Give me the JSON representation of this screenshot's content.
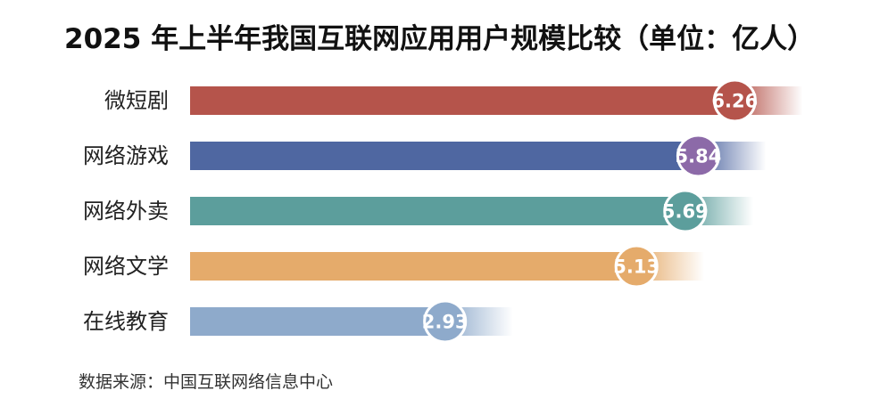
{
  "title": "2025 年上半年我国互联网应用用户规模比较（单位：亿人）",
  "source": "数据来源：中国互联网络信息中心",
  "chart_data": {
    "type": "bar",
    "orientation": "horizontal",
    "title": "2025 年上半年我国互联网应用用户规模比较（单位：亿人）",
    "unit": "亿人",
    "categories": [
      "微短剧",
      "网络游戏",
      "网络外卖",
      "网络文学",
      "在线教育"
    ],
    "values": [
      6.26,
      5.84,
      5.69,
      5.13,
      2.93
    ],
    "data_labels": [
      "6.26",
      "5.84",
      "5.69",
      "5.13",
      "2.93"
    ],
    "colors": [
      "#B5544B",
      "#4F67A1",
      "#5C9E9C",
      "#E5AB6B",
      "#8EAACB"
    ],
    "badge_colors": [
      "#B5544B",
      "#8C6AA8",
      "#5C9E9C",
      "#E5AB6B",
      "#8EAACB"
    ],
    "grid": false,
    "legend": "none"
  }
}
